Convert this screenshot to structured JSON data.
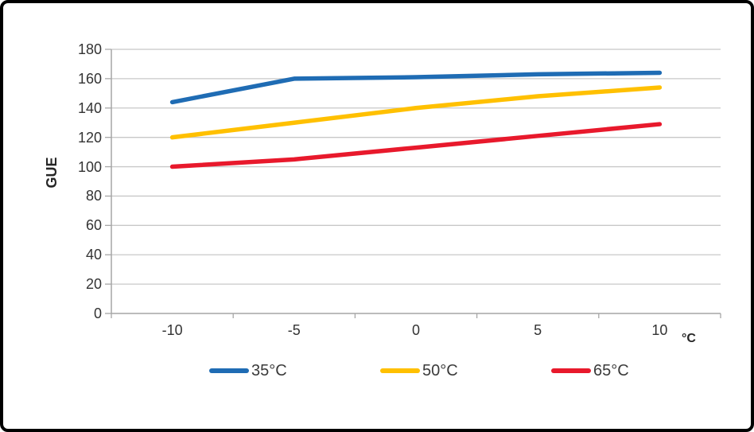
{
  "chart_data": {
    "type": "line",
    "title": "",
    "xlabel": "°C",
    "ylabel": "GUE",
    "x": [
      -10,
      -5,
      0,
      5,
      10
    ],
    "xtick_labels": [
      "-10",
      "-5",
      "0",
      "5",
      "10"
    ],
    "yticks": [
      0,
      20,
      40,
      60,
      80,
      100,
      120,
      140,
      160,
      180
    ],
    "ylim": [
      0,
      180
    ],
    "grid": "horizontal-only",
    "legend_position": "bottom",
    "series": [
      {
        "name": "35°C",
        "color": "#1f6cb4",
        "values": [
          144,
          160,
          161,
          163,
          164
        ]
      },
      {
        "name": "50°C",
        "color": "#ffc000",
        "values": [
          120,
          130,
          140,
          148,
          154
        ]
      },
      {
        "name": "65°C",
        "color": "#e8192c",
        "values": [
          100,
          105,
          113,
          121,
          129
        ]
      }
    ]
  },
  "colors": {
    "background": "#ffffff",
    "frame_border": "#000000",
    "gridline": "#c8c8c8",
    "axis": "#a6a6a6",
    "tick_text": "#333333",
    "legend_text": "#3a3a3a"
  }
}
